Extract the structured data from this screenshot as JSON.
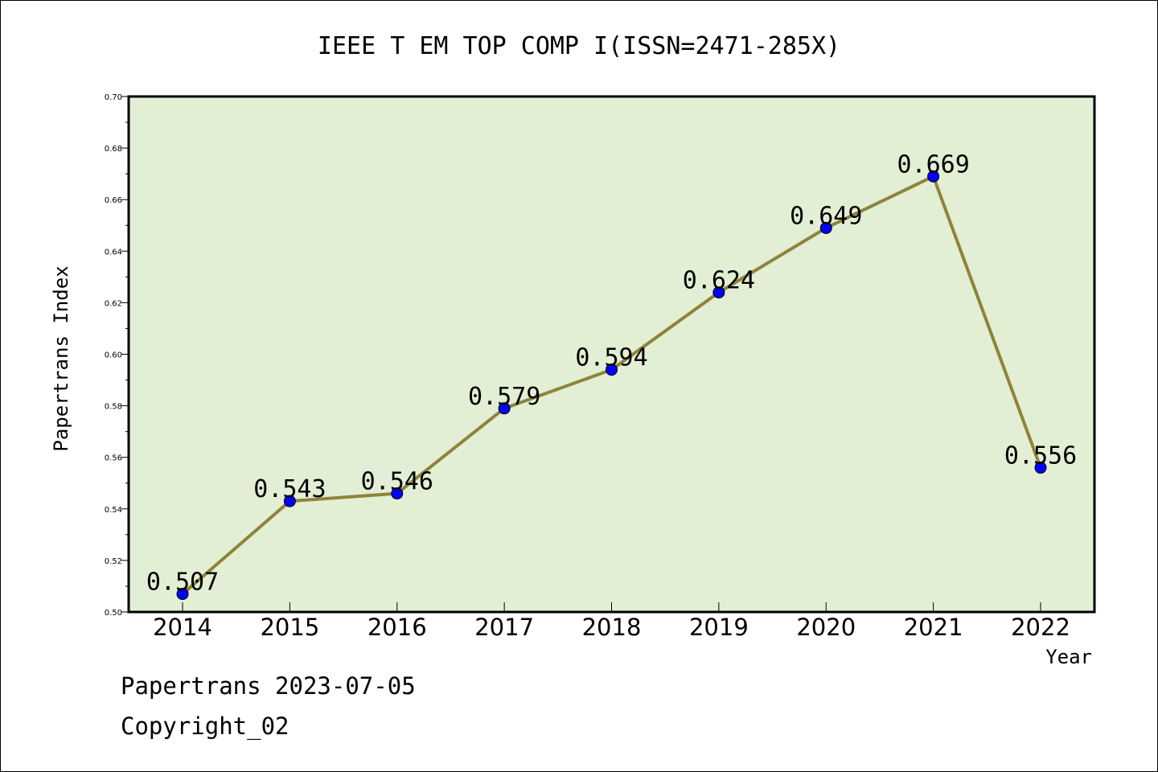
{
  "chart_data": {
    "type": "line",
    "title": "IEEE T EM TOP COMP I(ISSN=2471-285X)",
    "xlabel": "Year",
    "ylabel": "Papertrans Index",
    "ylim": [
      0.5,
      0.7
    ],
    "yticks": [
      "0.50",
      "0.52",
      "0.54",
      "0.56",
      "0.58",
      "0.60",
      "0.62",
      "0.64",
      "0.66",
      "0.68",
      "0.70"
    ],
    "categories": [
      "2014",
      "2015",
      "2016",
      "2017",
      "2018",
      "2019",
      "2020",
      "2021",
      "2022"
    ],
    "series": [
      {
        "values": [
          0.507,
          0.543,
          0.546,
          0.579,
          0.594,
          0.624,
          0.649,
          0.669,
          0.556
        ],
        "labels": [
          "0.507",
          "0.543",
          "0.546",
          "0.579",
          "0.594",
          "0.624",
          "0.649",
          "0.669",
          "0.556"
        ]
      }
    ],
    "grid": false,
    "colors": {
      "plot_bg": "#e2efd4",
      "line": "#8f833a",
      "marker": "#0000ff"
    }
  },
  "footer": {
    "line1": "Papertrans 2023-07-05",
    "line2": "Copyright_02"
  }
}
